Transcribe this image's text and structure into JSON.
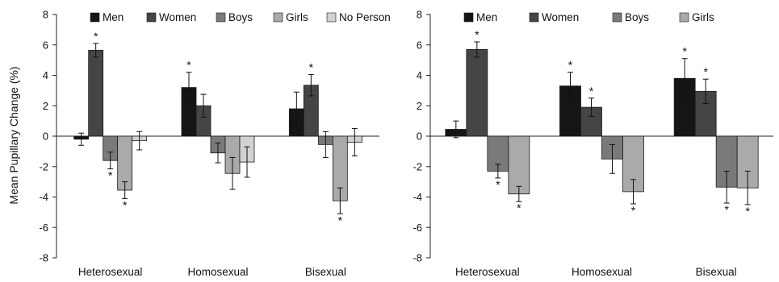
{
  "chart_data": [
    {
      "type": "bar",
      "ylabel": "Mean Pupillary Change (%)",
      "ylim": [
        -8,
        8
      ],
      "yticks": [
        -8,
        -6,
        -4,
        -2,
        0,
        2,
        4,
        6,
        8
      ],
      "legend_position": "top",
      "categories": [
        "Heterosexual",
        "Homosexual",
        "Bisexual"
      ],
      "series": [
        {
          "name": "Men",
          "color": "#151515",
          "values": [
            -0.2,
            3.2,
            1.8
          ],
          "errors": [
            0.4,
            1.0,
            1.1
          ],
          "significant": [
            false,
            true,
            false
          ]
        },
        {
          "name": "Women",
          "color": "#454545",
          "values": [
            5.65,
            2.0,
            3.35
          ],
          "errors": [
            0.45,
            0.75,
            0.7
          ],
          "significant": [
            true,
            false,
            true
          ]
        },
        {
          "name": "Boys",
          "color": "#7a7a7a",
          "values": [
            -1.6,
            -1.1,
            -0.55
          ],
          "errors": [
            0.55,
            0.65,
            0.85
          ],
          "significant": [
            true,
            false,
            false
          ]
        },
        {
          "name": "Girls",
          "color": "#aaaaaa",
          "values": [
            -3.55,
            -2.45,
            -4.25
          ],
          "errors": [
            0.55,
            1.05,
            0.85
          ],
          "significant": [
            true,
            false,
            true
          ]
        },
        {
          "name": "No Person",
          "color": "#d2d2d2",
          "values": [
            -0.3,
            -1.7,
            -0.4
          ],
          "errors": [
            0.6,
            1.0,
            0.9
          ],
          "significant": [
            false,
            false,
            false
          ]
        }
      ]
    },
    {
      "type": "bar",
      "ylabel": "",
      "ylim": [
        -8,
        8
      ],
      "yticks": [
        -8,
        -6,
        -4,
        -2,
        0,
        2,
        4,
        6,
        8
      ],
      "legend_position": "top",
      "categories": [
        "Heterosexual",
        "Homosexual",
        "Bisexual"
      ],
      "series": [
        {
          "name": "Men",
          "color": "#151515",
          "values": [
            0.45,
            3.3,
            3.8
          ],
          "errors": [
            0.55,
            0.9,
            1.3
          ],
          "significant": [
            false,
            true,
            true
          ]
        },
        {
          "name": "Women",
          "color": "#454545",
          "values": [
            5.7,
            1.9,
            2.95
          ],
          "errors": [
            0.5,
            0.6,
            0.8
          ],
          "significant": [
            true,
            true,
            true
          ]
        },
        {
          "name": "Boys",
          "color": "#7a7a7a",
          "values": [
            -2.3,
            -1.5,
            -3.35
          ],
          "errors": [
            0.45,
            0.95,
            1.05
          ],
          "significant": [
            true,
            false,
            true
          ]
        },
        {
          "name": "Girls",
          "color": "#aaaaaa",
          "values": [
            -3.8,
            -3.65,
            -3.4
          ],
          "errors": [
            0.5,
            0.8,
            1.1
          ],
          "significant": [
            true,
            true,
            true
          ]
        }
      ]
    }
  ]
}
